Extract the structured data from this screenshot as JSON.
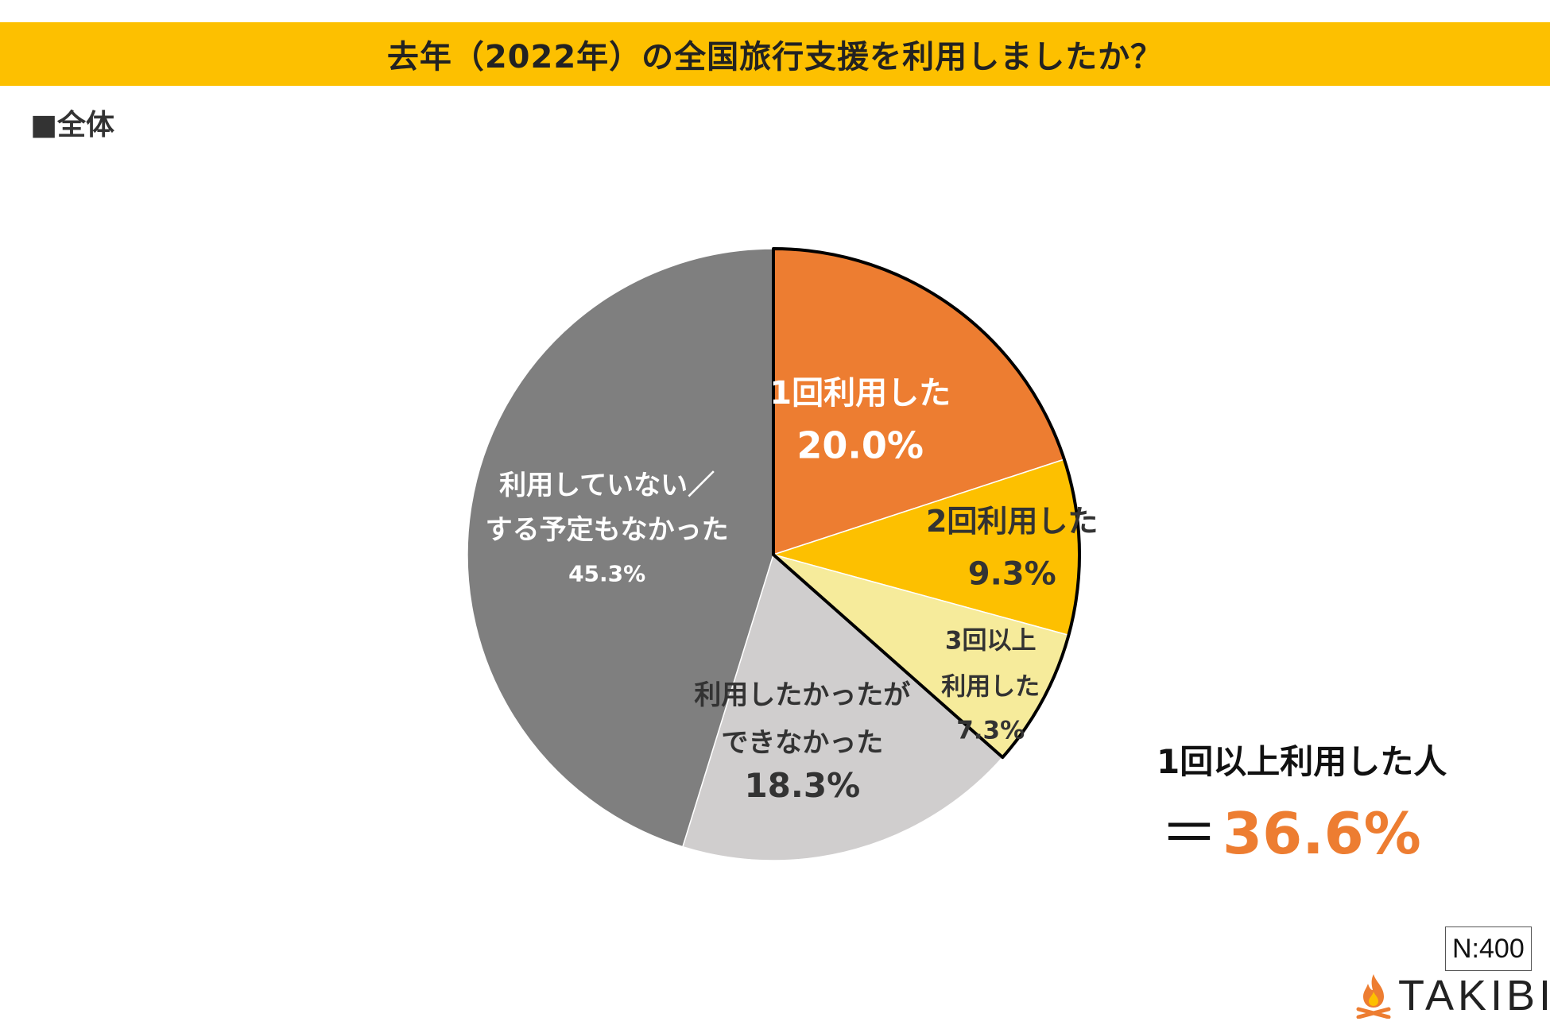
{
  "header": {
    "title": "去年（2022年）の全国旅行支援を利用しましたか？",
    "subtitle": "■全体"
  },
  "chart_data": {
    "type": "pie",
    "title": "去年（2022年）の全国旅行支援を利用しましたか？",
    "start": "12 o'clock, clockwise",
    "slices": [
      {
        "label_lines": [
          "1回利用した"
        ],
        "value": 20.0,
        "value_label": "20.0%",
        "color": "#ed7d31",
        "text_color": "#ffffff"
      },
      {
        "label_lines": [
          "2回利用した"
        ],
        "value": 9.3,
        "value_label": "9.3%",
        "color": "#fdc000",
        "text_color": "#333333"
      },
      {
        "label_lines": [
          "3回以上",
          "利用した"
        ],
        "value": 7.3,
        "value_label": "7.3%",
        "color": "#f6eb9b",
        "text_color": "#333333"
      },
      {
        "label_lines": [
          "利用したかったが",
          "できなかった"
        ],
        "value": 18.3,
        "value_label": "18.3%",
        "color": "#d0cece",
        "text_color": "#333333"
      },
      {
        "label_lines": [
          "利用していない／",
          "する予定もなかった"
        ],
        "value": 45.3,
        "value_label": "45.3%",
        "color": "#7f7f7f",
        "text_color": "#ffffff"
      }
    ],
    "highlight": {
      "slices": [
        0,
        1,
        2
      ],
      "outline_color": "#000000"
    }
  },
  "summary": {
    "label": "1回以上利用した人",
    "prefix": "＝",
    "value": "36.6%"
  },
  "footer": {
    "sample_size": "N:400",
    "brand": "TAKIBI",
    "brand_icon": "flame-icon"
  }
}
